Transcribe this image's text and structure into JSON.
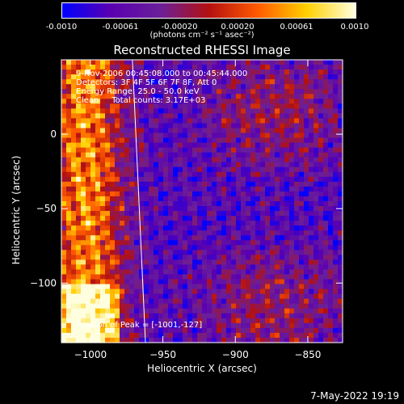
{
  "colorbar": {
    "ticks": [
      "-0.0010",
      "-0.00061",
      "-0.00020",
      "0.00020",
      "0.00061",
      "0.0010"
    ],
    "tick_values": [
      -0.001,
      -0.00061,
      -0.0002,
      0.0002,
      0.00061,
      0.001
    ],
    "unit_label": "(photons cm⁻² s⁻¹ asec⁻²)",
    "range": [
      -0.001,
      0.001
    ],
    "colors": [
      "#0000ff",
      "#5a00b0",
      "#6a1f9a",
      "#b41010",
      "#ff5a00",
      "#ffd000",
      "#ffffe0"
    ]
  },
  "annotations": {
    "line1": "9-Nov-2006 00:45:08.000 to 00:45:44.000",
    "line2": "Detectors: 3F 4F 5F 6F 7F 8F, Att 0",
    "line3": "Energy Range: 25.0 - 50.0 keV",
    "line4": "Clean     Total counts: 3.17E+03",
    "peak": "Position of Peak = [-1001,-127]"
  },
  "timestamp": "7-May-2022 19:19",
  "chart_data": {
    "type": "heatmap",
    "title": "Reconstructed RHESSI Image",
    "xlabel": "Heliocentric X (arcsec)",
    "ylabel": "Heliocentric Y (arcsec)",
    "xlim": [
      -1020,
      -826
    ],
    "ylim": [
      -140,
      50
    ],
    "xticks": [
      -1000,
      -950,
      -900,
      -850
    ],
    "yticks": [
      -100,
      -50,
      0
    ],
    "peak_position": [
      -1001,
      -127
    ],
    "limb_line": [
      [
        -971,
        50
      ],
      [
        -962,
        -140
      ]
    ]
  }
}
